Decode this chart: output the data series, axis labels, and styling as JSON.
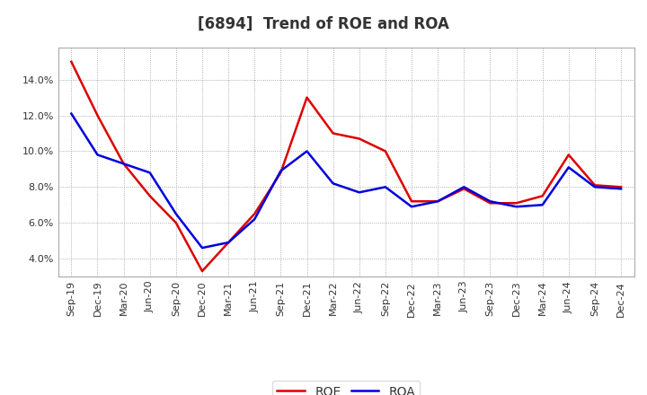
{
  "title": "[6894]  Trend of ROE and ROA",
  "x_labels": [
    "Sep-19",
    "Dec-19",
    "Mar-20",
    "Jun-20",
    "Sep-20",
    "Dec-20",
    "Mar-21",
    "Jun-21",
    "Sep-21",
    "Dec-21",
    "Mar-22",
    "Jun-22",
    "Sep-22",
    "Dec-22",
    "Mar-23",
    "Jun-23",
    "Sep-23",
    "Dec-23",
    "Mar-24",
    "Jun-24",
    "Sep-24",
    "Dec-24"
  ],
  "roe": [
    15.0,
    12.0,
    9.3,
    7.5,
    6.0,
    3.3,
    4.9,
    6.5,
    8.8,
    13.0,
    11.0,
    10.7,
    10.0,
    7.2,
    7.2,
    7.9,
    7.1,
    7.1,
    7.5,
    9.8,
    8.1,
    8.0
  ],
  "roa": [
    12.1,
    9.8,
    9.3,
    8.8,
    6.5,
    4.6,
    4.9,
    6.2,
    8.9,
    10.0,
    8.2,
    7.7,
    8.0,
    6.9,
    7.2,
    8.0,
    7.2,
    6.9,
    7.0,
    9.1,
    8.0,
    7.9
  ],
  "roe_color": "#dd0000",
  "roa_color": "#0000dd",
  "background_color": "#ffffff",
  "plot_bg_color": "#ffffff",
  "grid_color": "#999999",
  "ylim": [
    3.0,
    15.8
  ],
  "yticks": [
    4.0,
    6.0,
    8.0,
    10.0,
    12.0,
    14.0
  ],
  "title_fontsize": 12,
  "title_color": "#333333",
  "tick_fontsize": 8,
  "legend_fontsize": 10,
  "line_width": 1.8
}
